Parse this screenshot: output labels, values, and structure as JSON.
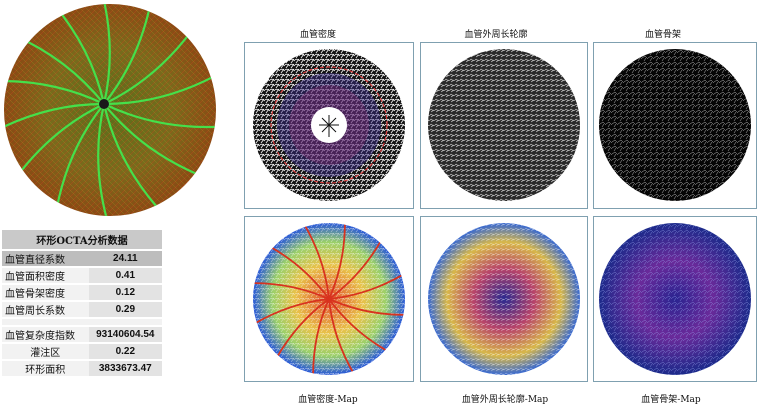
{
  "colors": {
    "fundus_bg": "#6b7a1e",
    "vessel_green": "#45e04a",
    "panel_border": "#7fa0b0",
    "table_header_bg": "#c9c9c9",
    "density_ring": "#d63a3a"
  },
  "table": {
    "title": "环形OCTA分析数据",
    "rows": [
      {
        "label": "血管直径系数",
        "value": "24.11"
      },
      {
        "label": "血管面积密度",
        "value": "0.41"
      },
      {
        "label": "血管骨架密度",
        "value": "0.12"
      },
      {
        "label": "血管周长系数",
        "value": "0.29"
      },
      {
        "label": "血管复杂度指数",
        "value": "93140604.54"
      },
      {
        "label": "灌注区",
        "value": "0.22"
      },
      {
        "label": "环形面积",
        "value": "3833673.47"
      }
    ]
  },
  "panels": {
    "top": [
      "血管密度",
      "血管外周长轮廓",
      "血管骨架"
    ],
    "bottom": [
      "血管密度-Map",
      "血管外周长轮廓-Map",
      "血管骨架-Map"
    ]
  }
}
